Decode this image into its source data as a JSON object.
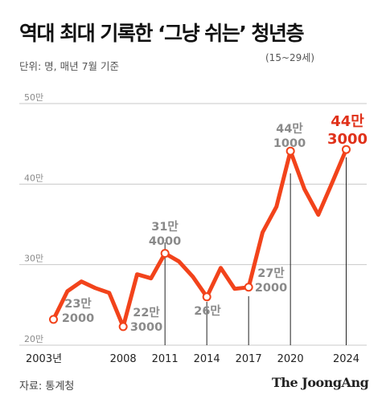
{
  "header": {
    "title": "역대 최대 기록한 ‘그냥 쉬는’ 청년층",
    "range_note": "(15~29세)",
    "unit_note": "단위: 명, 매년 7월 기준"
  },
  "footer": {
    "source": "자료: 통계청",
    "brand": "The JoongAng"
  },
  "colors": {
    "line": "#f2431b",
    "highlight_label": "#e0311a",
    "label": "#8a8a8a",
    "grid": "#c9c9c9"
  },
  "chart_data": {
    "type": "line",
    "title": "역대 최대 기록한 ‘그냥 쉬는’ 청년층",
    "ylim": [
      200000,
      500000
    ],
    "yticks": [
      {
        "value": 200000,
        "label": "20만"
      },
      {
        "value": 300000,
        "label": "30만"
      },
      {
        "value": 400000,
        "label": "40만"
      },
      {
        "value": 500000,
        "label": "50만"
      }
    ],
    "xticks": [
      {
        "x": 2003,
        "label": "2003년"
      },
      {
        "x": 2008,
        "label": "2008"
      },
      {
        "x": 2011,
        "label": "2011"
      },
      {
        "x": 2014,
        "label": "2014"
      },
      {
        "x": 2017,
        "label": "2017"
      },
      {
        "x": 2020,
        "label": "2020"
      },
      {
        "x": 2024,
        "label": "2024"
      }
    ],
    "x": [
      2003,
      2004,
      2005,
      2006,
      2007,
      2008,
      2009,
      2010,
      2011,
      2012,
      2013,
      2014,
      2015,
      2016,
      2017,
      2018,
      2019,
      2020,
      2021,
      2022,
      2023,
      2024
    ],
    "values": [
      232000,
      267000,
      279000,
      271000,
      265000,
      223000,
      288000,
      283000,
      314000,
      304000,
      285000,
      260000,
      296000,
      270000,
      272000,
      340000,
      372000,
      441000,
      394000,
      362000,
      402000,
      443000
    ],
    "annotations": [
      {
        "x": 2003,
        "line1": "23만",
        "line2": "2000",
        "highlight": false
      },
      {
        "x": 2008,
        "line1": "22만",
        "line2": "3000",
        "highlight": false
      },
      {
        "x": 2011,
        "line1": "31만",
        "line2": "4000",
        "highlight": false
      },
      {
        "x": 2014,
        "line1": "26만",
        "line2": "",
        "highlight": false
      },
      {
        "x": 2017,
        "line1": "27만",
        "line2": "2000",
        "highlight": false
      },
      {
        "x": 2020,
        "line1": "44만",
        "line2": "1000",
        "highlight": false
      },
      {
        "x": 2024,
        "line1": "44만",
        "line2": "3000",
        "highlight": true
      }
    ],
    "grid": true,
    "legend": "none"
  }
}
